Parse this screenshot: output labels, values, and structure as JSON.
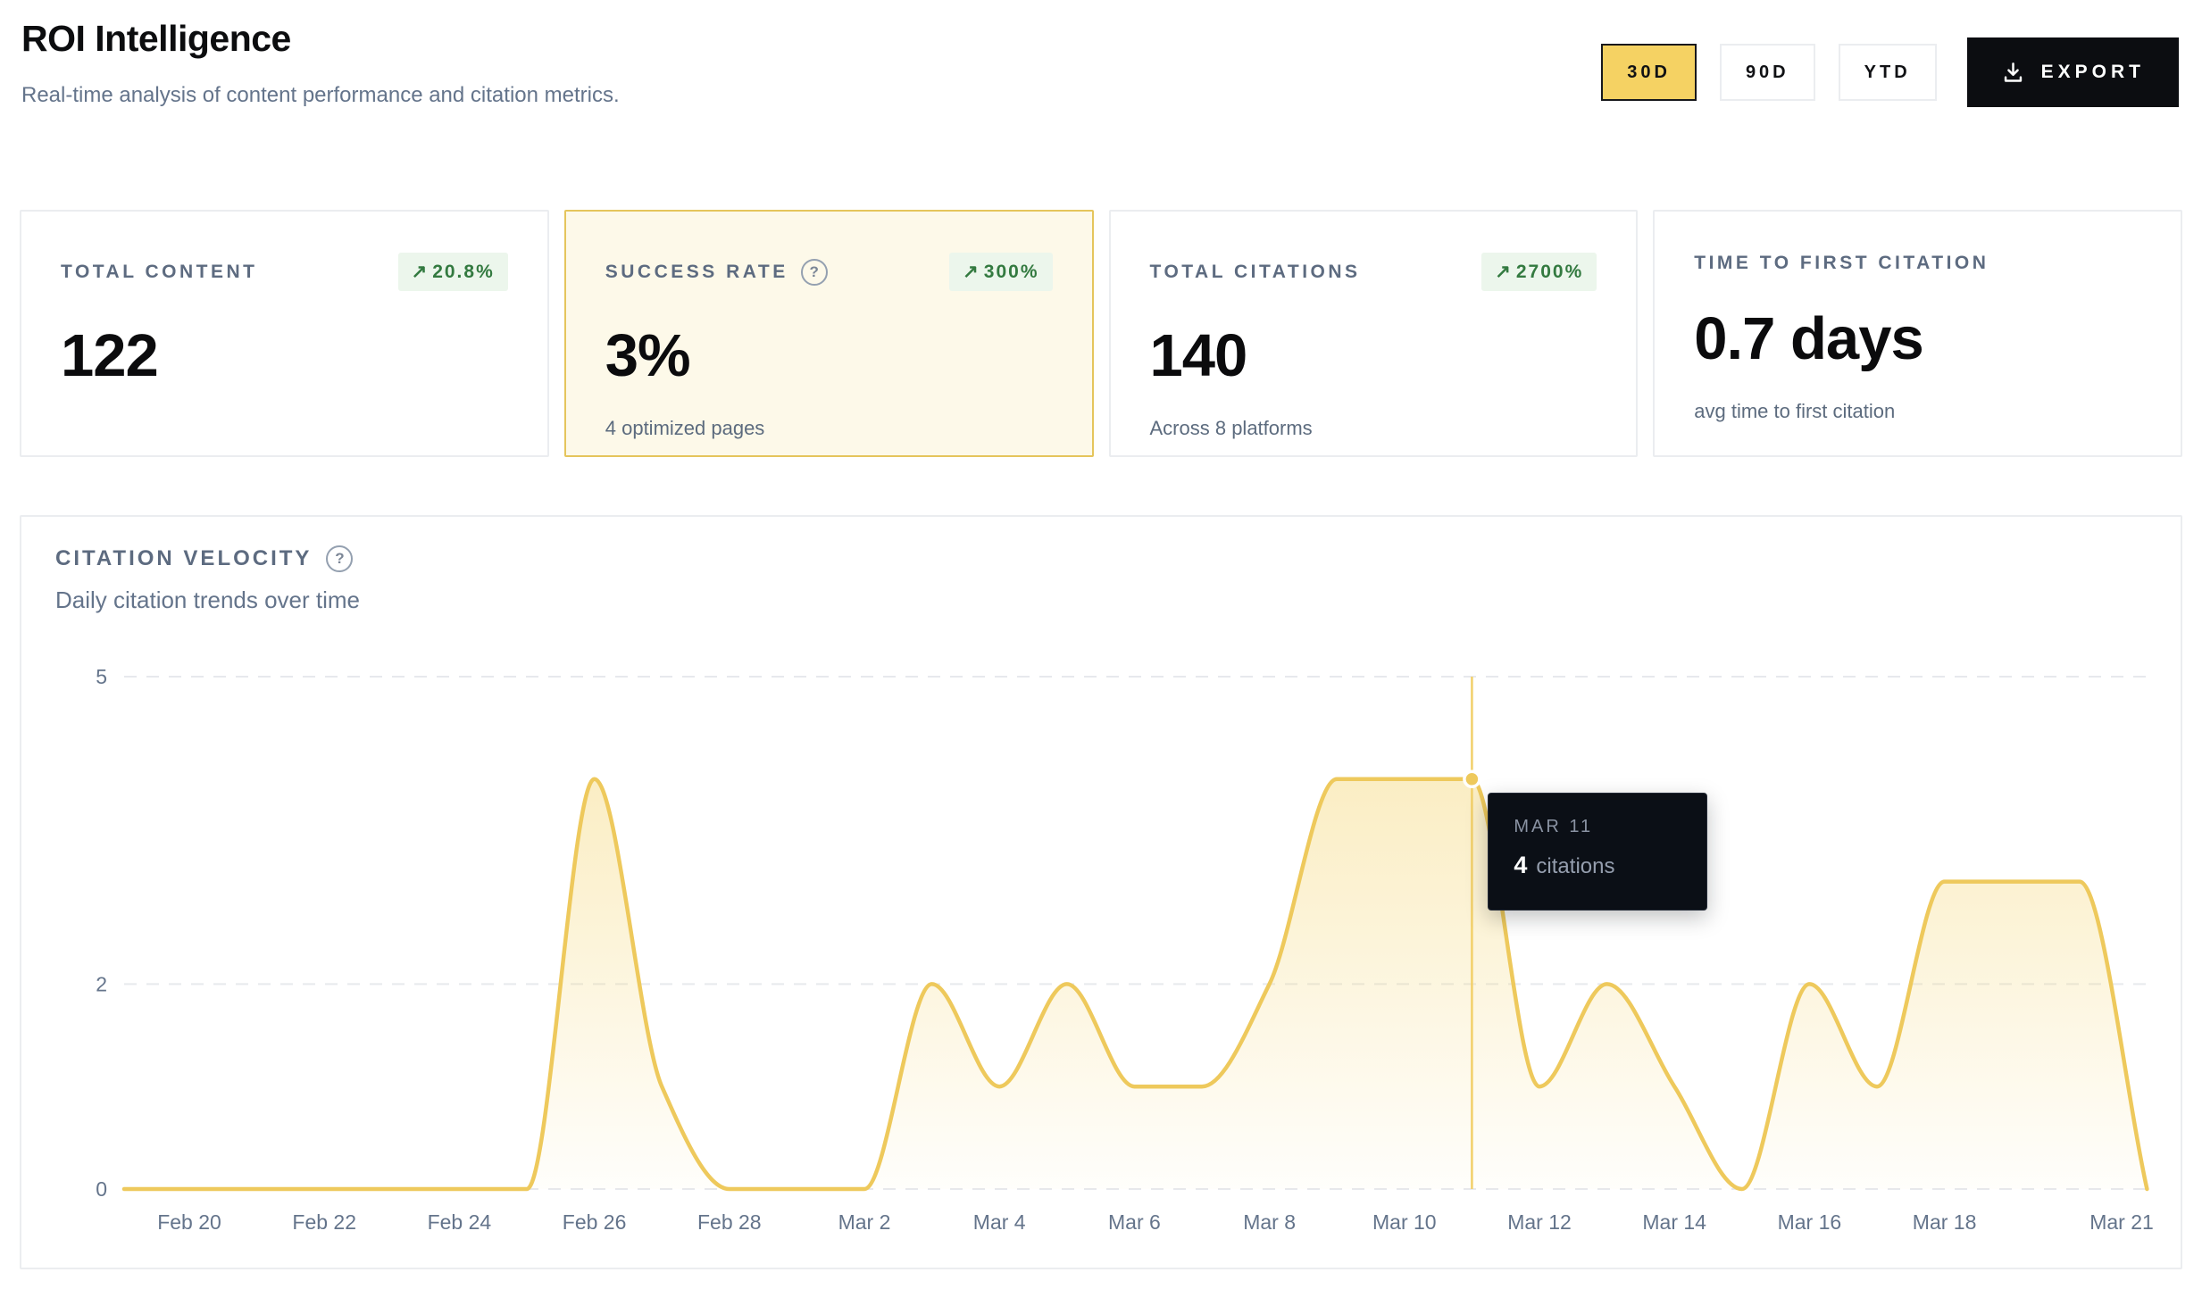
{
  "ui": {
    "badge_arrow": "↗",
    "help_glyph": "?"
  },
  "header": {
    "title": "ROI Intelligence",
    "subtitle": "Real-time analysis of content performance and citation metrics.",
    "range_30d": "30D",
    "range_90d": "90D",
    "range_ytd": "YTD",
    "export_label": "EXPORT",
    "active_range": "30D"
  },
  "cards": [
    {
      "label": "TOTAL CONTENT",
      "value": "122",
      "badge": "20.8%",
      "sub": ""
    },
    {
      "label": "SUCCESS RATE",
      "value": "3%",
      "badge": "300%",
      "sub": "4 optimized pages"
    },
    {
      "label": "TOTAL CITATIONS",
      "value": "140",
      "badge": "2700%",
      "sub": "Across 8 platforms"
    },
    {
      "label": "TIME TO FIRST CITATION",
      "value": "0.7 days",
      "badge": "",
      "sub": "avg time to first citation"
    }
  ],
  "chart": {
    "title": "CITATION VELOCITY",
    "subtitle": "Daily citation trends over time",
    "tooltip": {
      "date": "MAR 11",
      "value": "4",
      "unit": "citations"
    }
  },
  "chart_data": {
    "type": "area",
    "title": "Citation Velocity",
    "subtitle": "Daily citation trends over time",
    "categories": [
      "Feb 20",
      "Feb 21",
      "Feb 22",
      "Feb 23",
      "Feb 24",
      "Feb 25",
      "Feb 26",
      "Feb 27",
      "Feb 28",
      "Mar 1",
      "Mar 2",
      "Mar 3",
      "Mar 4",
      "Mar 5",
      "Mar 6",
      "Mar 7",
      "Mar 8",
      "Mar 9",
      "Mar 10",
      "Mar 11",
      "Mar 12",
      "Mar 13",
      "Mar 14",
      "Mar 15",
      "Mar 16",
      "Mar 17",
      "Mar 18",
      "Mar 19",
      "Mar 20",
      "Mar 21"
    ],
    "values": [
      0,
      0,
      0,
      0,
      0,
      0,
      4,
      1,
      0,
      0,
      0,
      2,
      1,
      2,
      1,
      1,
      2,
      4,
      4,
      4,
      1,
      2,
      1,
      0,
      2,
      1,
      3,
      3,
      3,
      0
    ],
    "series_name": "citations",
    "x_tick_labels": [
      "Feb 20",
      "Feb 22",
      "Feb 24",
      "Feb 26",
      "Feb 28",
      "Mar 2",
      "Mar 4",
      "Mar 6",
      "Mar 8",
      "Mar 10",
      "Mar 12",
      "Mar 14",
      "Mar 16",
      "Mar 18",
      "Mar 21"
    ],
    "y_ticks": [
      0,
      2,
      5
    ],
    "ylim": [
      0,
      5
    ],
    "grid": "horizontal dashed",
    "legend": "none",
    "curve": "monotone",
    "hover_point": {
      "category": "Mar 11",
      "value": 4
    },
    "line_color": "#eec95c",
    "area_color": "#f5d87a",
    "cursor_color": "#f2d06a",
    "grid_color": "#e7e9ed",
    "axis_text_color": "#64748b"
  }
}
